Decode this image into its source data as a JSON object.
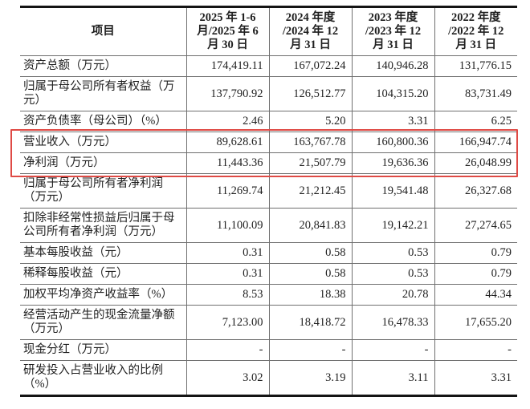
{
  "table": {
    "highlight_color": "#df4a45",
    "columns": [
      "项目",
      "2025 年 1-6 月/2025 年 6 月 30 日",
      "2024 年度 /2024 年 12 月 31 日",
      "2023 年度 /2023 年 12 月 31 日",
      "2022 年度 /2022 年 12 月 31 日"
    ],
    "rows": [
      {
        "label": "资产总额（万元）",
        "values": [
          "174,419.11",
          "167,072.24",
          "140,946.28",
          "131,776.15"
        ]
      },
      {
        "label": "归属于母公司所有者权益（万元）",
        "values": [
          "137,790.92",
          "126,512.77",
          "104,315.20",
          "83,731.49"
        ]
      },
      {
        "label": "资产负债率（母公司）（%）",
        "values": [
          "2.46",
          "5.20",
          "3.31",
          "6.25"
        ]
      },
      {
        "label": "营业收入（万元）",
        "values": [
          "89,628.61",
          "163,767.78",
          "160,800.36",
          "166,947.74"
        ],
        "highlighted": true
      },
      {
        "label": "净利润（万元）",
        "values": [
          "11,443.36",
          "21,507.79",
          "19,636.36",
          "26,048.99"
        ],
        "highlighted": true
      },
      {
        "label": "归属于母公司所有者净利润（万元）",
        "values": [
          "11,269.74",
          "21,212.45",
          "19,541.48",
          "26,327.68"
        ]
      },
      {
        "label": "扣除非经常性损益后归属于母公司所有者净利润（万元）",
        "values": [
          "11,100.09",
          "20,841.83",
          "19,142.21",
          "27,274.65"
        ]
      },
      {
        "label": "基本每股收益（元）",
        "values": [
          "0.31",
          "0.58",
          "0.53",
          "0.79"
        ]
      },
      {
        "label": "稀释每股收益（元）",
        "values": [
          "0.31",
          "0.58",
          "0.53",
          "0.79"
        ]
      },
      {
        "label": "加权平均净资产收益率（%）",
        "values": [
          "8.53",
          "18.38",
          "20.78",
          "44.34"
        ]
      },
      {
        "label": "经营活动产生的现金流量净额（万元）",
        "values": [
          "7,123.00",
          "18,418.72",
          "16,478.33",
          "17,655.20"
        ]
      },
      {
        "label": "现金分红（万元）",
        "values": [
          "-",
          "-",
          "-",
          "-"
        ]
      },
      {
        "label": "研发投入占营业收入的比例（%）",
        "values": [
          "3.02",
          "3.19",
          "3.11",
          "3.31"
        ]
      }
    ]
  }
}
